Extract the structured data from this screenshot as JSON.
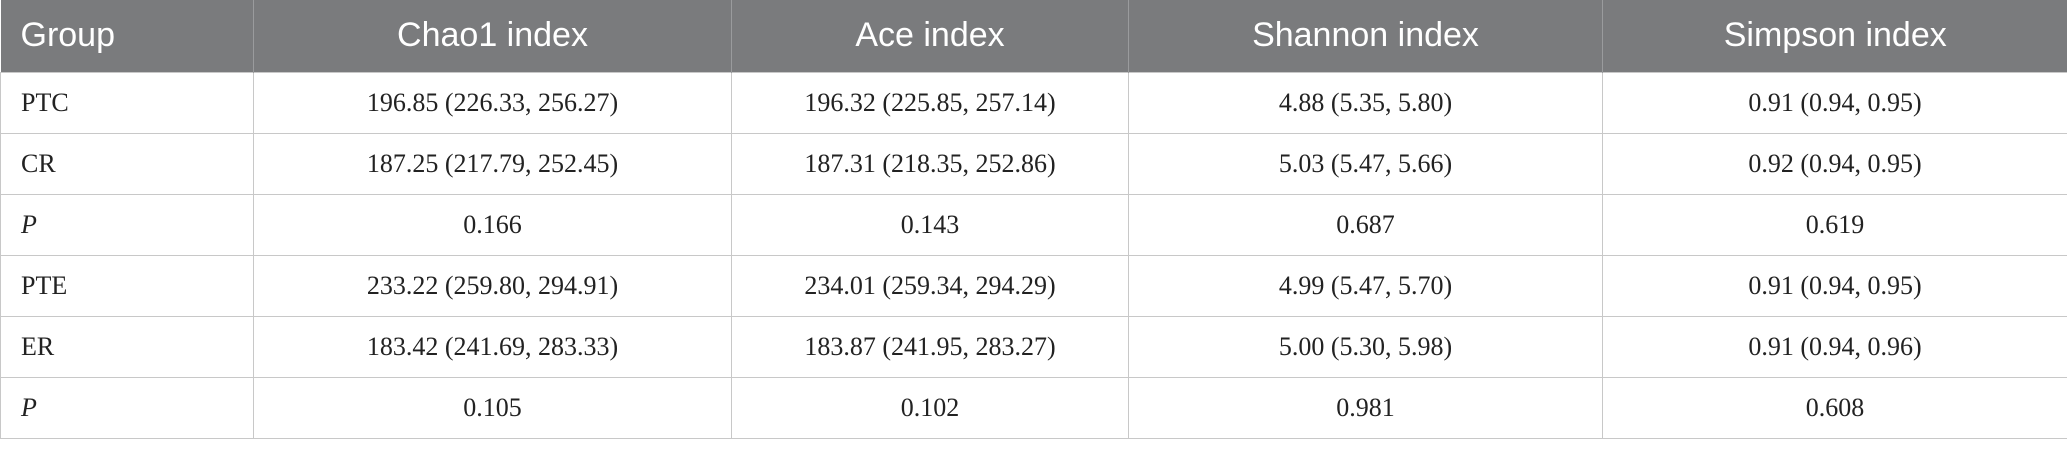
{
  "table": {
    "headers": [
      "Group",
      "Chao1 index",
      "Ace index",
      "Shannon index",
      "Simpson index"
    ],
    "rows": [
      {
        "group": "PTC",
        "chao1": "196.85 (226.33, 256.27)",
        "ace": "196.32 (225.85, 257.14)",
        "shannon": "4.88 (5.35, 5.80)",
        "simpson": "0.91 (0.94, 0.95)"
      },
      {
        "group": "CR",
        "chao1": "187.25 (217.79, 252.45)",
        "ace": "187.31 (218.35, 252.86)",
        "shannon": "5.03 (5.47, 5.66)",
        "simpson": "0.92 (0.94, 0.95)"
      },
      {
        "group": "P",
        "chao1": "0.166",
        "ace": "0.143",
        "shannon": "0.687",
        "simpson": "0.619"
      },
      {
        "group": "PTE",
        "chao1": "233.22 (259.80, 294.91)",
        "ace": "234.01 (259.34, 294.29)",
        "shannon": "4.99 (5.47, 5.70)",
        "simpson": "0.91 (0.94, 0.95)"
      },
      {
        "group": "ER",
        "chao1": "183.42 (241.69, 283.33)",
        "ace": "183.87 (241.95, 283.27)",
        "shannon": "5.00 (5.30, 5.98)",
        "simpson": "0.91 (0.94, 0.96)"
      },
      {
        "group": "P",
        "chao1": "0.105",
        "ace": "0.102",
        "shannon": "0.981",
        "simpson": "0.608"
      }
    ]
  },
  "colors": {
    "header_background": "#7a7b7d",
    "header_text": "#ffffff",
    "grid_line": "#c8c8c8"
  }
}
